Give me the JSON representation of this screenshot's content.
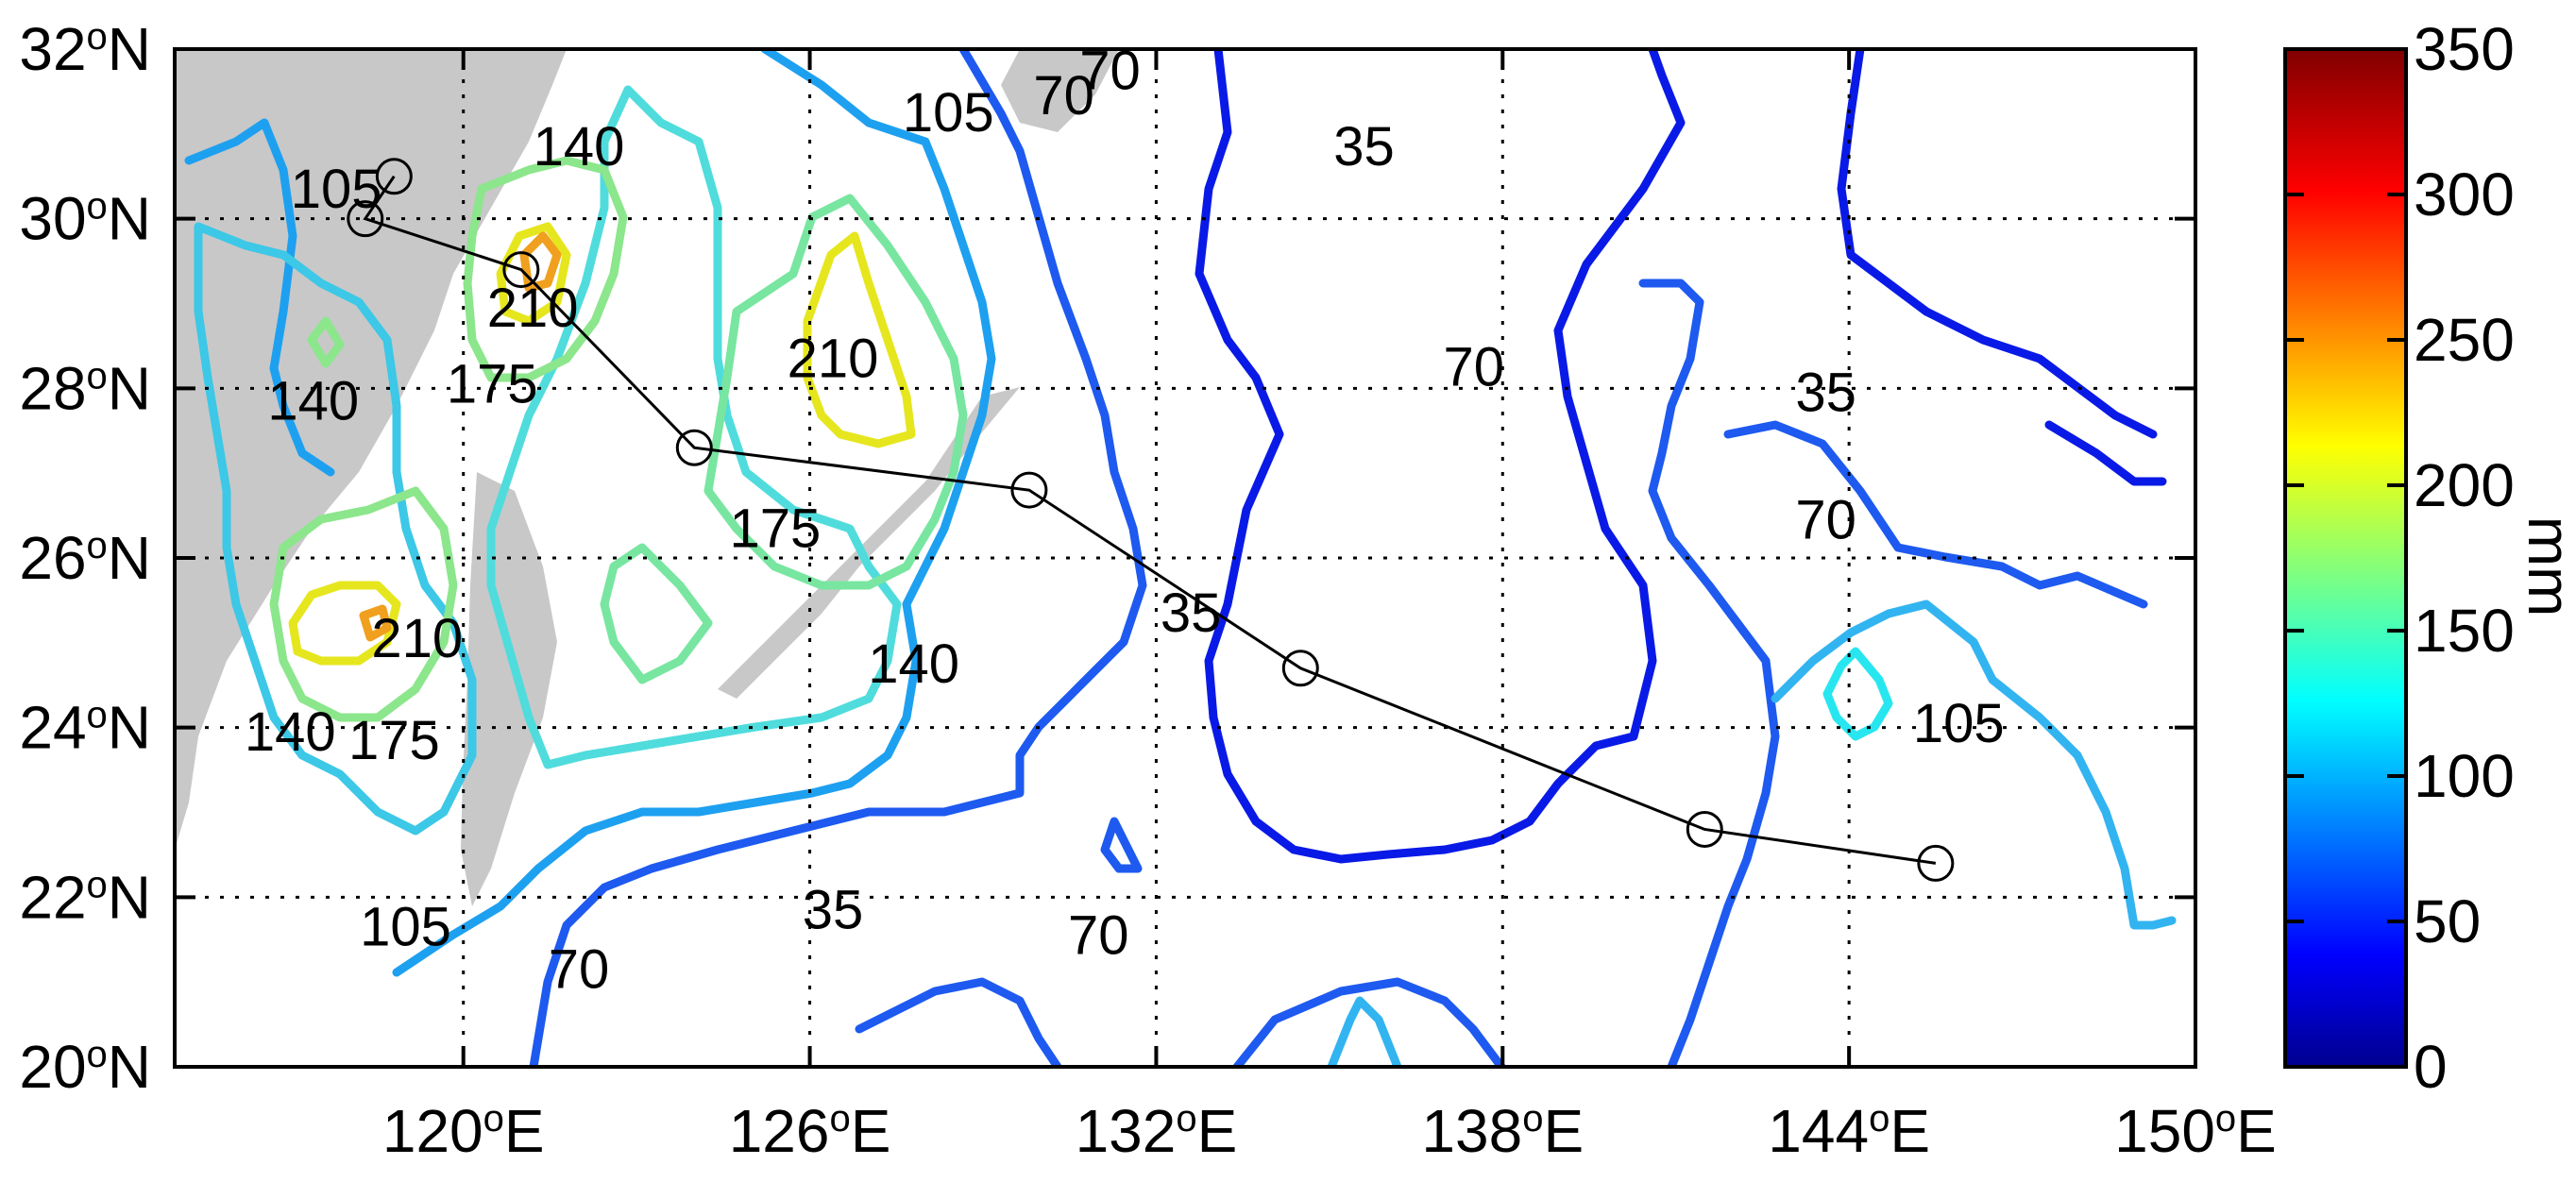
{
  "map": {
    "lon_ticks": [
      {
        "value": 120,
        "label": "120"
      },
      {
        "value": 126,
        "label": "126"
      },
      {
        "value": 132,
        "label": "132"
      },
      {
        "value": 138,
        "label": "138"
      },
      {
        "value": 144,
        "label": "144"
      },
      {
        "value": 150,
        "label": "150"
      }
    ],
    "lat_ticks": [
      {
        "value": 20,
        "label": "20"
      },
      {
        "value": 22,
        "label": "22"
      },
      {
        "value": 24,
        "label": "24"
      },
      {
        "value": 26,
        "label": "26"
      },
      {
        "value": 28,
        "label": "28"
      },
      {
        "value": 30,
        "label": "30"
      },
      {
        "value": 32,
        "label": "32"
      }
    ],
    "lon_suffix": "E",
    "lat_suffix": "N",
    "degree_symbol": "o",
    "extent": {
      "lon": [
        115,
        150
      ],
      "lat": [
        20,
        32
      ]
    },
    "grid": "dotted",
    "land_color": "#c8c8c8"
  },
  "track": {
    "points": [
      [
        118.8,
        30.5
      ],
      [
        118.3,
        30.0
      ],
      [
        121.0,
        29.4
      ],
      [
        124.0,
        27.3
      ],
      [
        129.8,
        26.8
      ],
      [
        134.5,
        24.7
      ],
      [
        141.5,
        22.8
      ],
      [
        145.5,
        22.4
      ]
    ]
  },
  "contour_labels": [
    {
      "text": "140",
      "lon": 122.0,
      "lat": 30.8
    },
    {
      "text": "105",
      "lon": 128.4,
      "lat": 31.2
    },
    {
      "text": "70",
      "lon": 130.4,
      "lat": 31.4
    },
    {
      "text": "70",
      "lon": 131.2,
      "lat": 31.7
    },
    {
      "text": "105",
      "lon": 117.8,
      "lat": 30.3
    },
    {
      "text": "210",
      "lon": 121.2,
      "lat": 28.9
    },
    {
      "text": "175",
      "lon": 120.5,
      "lat": 28.0
    },
    {
      "text": "140",
      "lon": 117.4,
      "lat": 27.8
    },
    {
      "text": "210",
      "lon": 126.4,
      "lat": 28.3
    },
    {
      "text": "175",
      "lon": 125.4,
      "lat": 26.3
    },
    {
      "text": "140",
      "lon": 127.8,
      "lat": 24.7
    },
    {
      "text": "210",
      "lon": 119.2,
      "lat": 25.0
    },
    {
      "text": "140",
      "lon": 117.0,
      "lat": 23.9
    },
    {
      "text": "175",
      "lon": 118.8,
      "lat": 23.8
    },
    {
      "text": "105",
      "lon": 119.0,
      "lat": 21.6
    },
    {
      "text": "70",
      "lon": 122.0,
      "lat": 21.1
    },
    {
      "text": "35",
      "lon": 126.4,
      "lat": 21.8
    },
    {
      "text": "35",
      "lon": 135.6,
      "lat": 30.8
    },
    {
      "text": "70",
      "lon": 137.5,
      "lat": 28.2
    },
    {
      "text": "35",
      "lon": 143.6,
      "lat": 27.9
    },
    {
      "text": "70",
      "lon": 143.6,
      "lat": 26.4
    },
    {
      "text": "35",
      "lon": 132.6,
      "lat": 25.3
    },
    {
      "text": "105",
      "lon": 145.9,
      "lat": 24.0
    },
    {
      "text": "70",
      "lon": 131.0,
      "lat": 21.5
    }
  ],
  "colorbar": {
    "min": 0,
    "max": 350,
    "ticks": [
      "0",
      "50",
      "100",
      "150",
      "200",
      "250",
      "300",
      "350"
    ],
    "unit": "mm"
  }
}
